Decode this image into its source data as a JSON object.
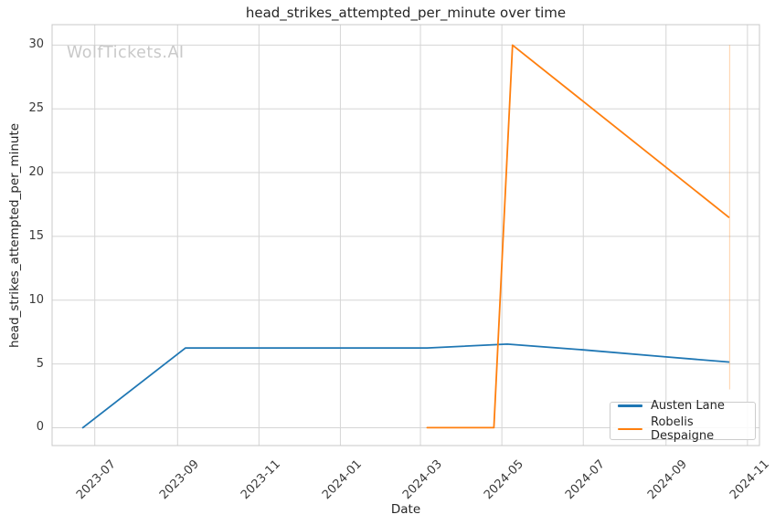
{
  "watermark": {
    "text": "WolfTickets.AI"
  },
  "chart_data": {
    "type": "line",
    "title": "head_strikes_attempted_per_minute over time",
    "xlabel": "Date",
    "ylabel": "head_strikes_attempted_per_minute",
    "grid": true,
    "legend_position": "lower right",
    "x_tick_labels": [
      "2023-07",
      "2023-09",
      "2023-11",
      "2024-01",
      "2024-03",
      "2024-05",
      "2024-07",
      "2024-09",
      "2024-11"
    ],
    "y_ticks": [
      0,
      5,
      10,
      15,
      20,
      25,
      30
    ],
    "xlim": [
      "2023-05-30",
      "2024-11-10"
    ],
    "ylim": [
      -1.4,
      31.6
    ],
    "colors": {
      "grid": "#d5d5d5",
      "spine": "#c8c8c8",
      "text": "#262626",
      "watermark": "#c9c9c9"
    },
    "series": [
      {
        "name": "Austen Lane",
        "color": "#1f77b4",
        "points": [
          [
            "2023-06-22",
            0.0
          ],
          [
            "2023-09-07",
            6.25
          ],
          [
            "2024-03-06",
            6.25
          ],
          [
            "2024-05-05",
            6.55
          ],
          [
            "2024-07-01",
            6.1
          ],
          [
            "2024-09-01",
            5.55
          ],
          [
            "2024-10-18",
            5.15
          ]
        ]
      },
      {
        "name": "Robelis Despaigne",
        "color": "#ff7f0e",
        "points": [
          [
            "2024-03-06",
            0.0
          ],
          [
            "2024-04-25",
            0.0
          ],
          [
            "2024-05-09",
            30.0
          ],
          [
            "2024-10-18",
            16.5
          ]
        ]
      }
    ],
    "annotations": [
      {
        "type": "vline",
        "date": "2024-10-18",
        "y_from": 3.0,
        "y_to": 30.0,
        "color": "#ff7f0e",
        "opacity": 0.3
      }
    ]
  }
}
